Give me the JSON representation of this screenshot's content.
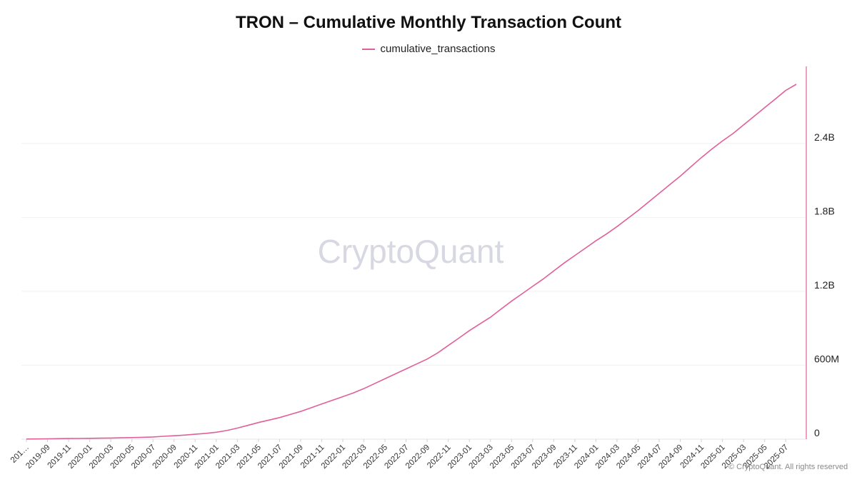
{
  "chart_data": {
    "type": "line",
    "title": "TRON – Cumulative Monthly Transaction Count",
    "legend_position": "top-center",
    "grid": true,
    "y_axis_side": "right",
    "ylim": [
      0,
      2880000000
    ],
    "y_ticks": [
      0,
      600000000,
      1200000000,
      1800000000,
      2400000000
    ],
    "y_tick_labels": [
      "0",
      "600M",
      "1.2B",
      "1.8B",
      "2.4B"
    ],
    "x": [
      "2019-07",
      "2019-08",
      "2019-09",
      "2019-10",
      "2019-11",
      "2019-12",
      "2020-01",
      "2020-02",
      "2020-03",
      "2020-04",
      "2020-05",
      "2020-06",
      "2020-07",
      "2020-08",
      "2020-09",
      "2020-10",
      "2020-11",
      "2020-12",
      "2021-01",
      "2021-02",
      "2021-03",
      "2021-04",
      "2021-05",
      "2021-06",
      "2021-07",
      "2021-08",
      "2021-09",
      "2021-10",
      "2021-11",
      "2021-12",
      "2022-01",
      "2022-02",
      "2022-03",
      "2022-04",
      "2022-05",
      "2022-06",
      "2022-07",
      "2022-08",
      "2022-09",
      "2022-10",
      "2022-11",
      "2022-12",
      "2023-01",
      "2023-02",
      "2023-03",
      "2023-04",
      "2023-05",
      "2023-06",
      "2023-07",
      "2023-08",
      "2023-09",
      "2023-10",
      "2023-11",
      "2023-12",
      "2024-01",
      "2024-02",
      "2024-03",
      "2024-04",
      "2024-05",
      "2024-06",
      "2024-07",
      "2024-08",
      "2024-09",
      "2024-10",
      "2024-11",
      "2024-12",
      "2025-01",
      "2025-02",
      "2025-03",
      "2025-04",
      "2025-05",
      "2025-06",
      "2025-07",
      "2025-08"
    ],
    "x_tick_labels": [
      "201…",
      "2019-09",
      "2019-11",
      "2020-01",
      "2020-03",
      "2020-05",
      "2020-07",
      "2020-09",
      "2020-11",
      "2021-01",
      "2021-03",
      "2021-05",
      "2021-07",
      "2021-09",
      "2021-11",
      "2022-01",
      "2022-03",
      "2022-05",
      "2022-07",
      "2022-09",
      "2022-11",
      "2023-01",
      "2023-03",
      "2023-05",
      "2023-07",
      "2023-09",
      "2023-11",
      "2024-01",
      "2024-03",
      "2024-05",
      "2024-07",
      "2024-09",
      "2024-11",
      "2025-01",
      "2025-03",
      "2025-05",
      "2025-07"
    ],
    "series": [
      {
        "name": "cumulative_transactions",
        "color": "#e0609a",
        "values": [
          1000000,
          2000000,
          3000000,
          4000000,
          5000000,
          6000000,
          7000000,
          8000000,
          9000000,
          11000000,
          13000000,
          15000000,
          18000000,
          23000000,
          28000000,
          33000000,
          40000000,
          47000000,
          56000000,
          70000000,
          90000000,
          112000000,
          135000000,
          155000000,
          175000000,
          200000000,
          225000000,
          255000000,
          285000000,
          315000000,
          345000000,
          375000000,
          410000000,
          450000000,
          490000000,
          530000000,
          570000000,
          610000000,
          650000000,
          700000000,
          760000000,
          820000000,
          880000000,
          935000000,
          990000000,
          1055000000,
          1120000000,
          1180000000,
          1240000000,
          1300000000,
          1365000000,
          1430000000,
          1490000000,
          1550000000,
          1610000000,
          1665000000,
          1725000000,
          1790000000,
          1855000000,
          1925000000,
          1995000000,
          2065000000,
          2135000000,
          2210000000,
          2285000000,
          2355000000,
          2420000000,
          2480000000,
          2550000000,
          2620000000,
          2690000000,
          2760000000,
          2830000000,
          2880000000
        ]
      }
    ]
  },
  "watermark": "CryptoQuant",
  "footer": "© CryptoQuant. All rights reserved"
}
